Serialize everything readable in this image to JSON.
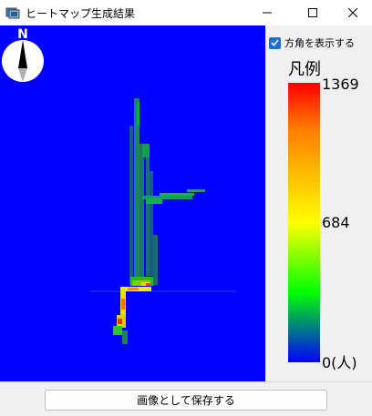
{
  "window": {
    "title": "ヒートマップ生成結果",
    "controls": [
      "minimize-icon",
      "maximize-icon",
      "close-icon"
    ]
  },
  "compass": {
    "label": "N",
    "icon": "compass-icon"
  },
  "options": {
    "show_direction_label": "方角を表示する",
    "show_direction_checked": true
  },
  "legend": {
    "title": "凡例",
    "max_label": "1369",
    "mid_label": "684",
    "min_label": "0(人)",
    "colors": [
      "#ff0000",
      "#ff7f00",
      "#ffff00",
      "#00ff00",
      "#0000ff"
    ]
  },
  "heatmap": {
    "background": "#0000ff"
  },
  "actions": {
    "save_label": "画像として保存する"
  }
}
